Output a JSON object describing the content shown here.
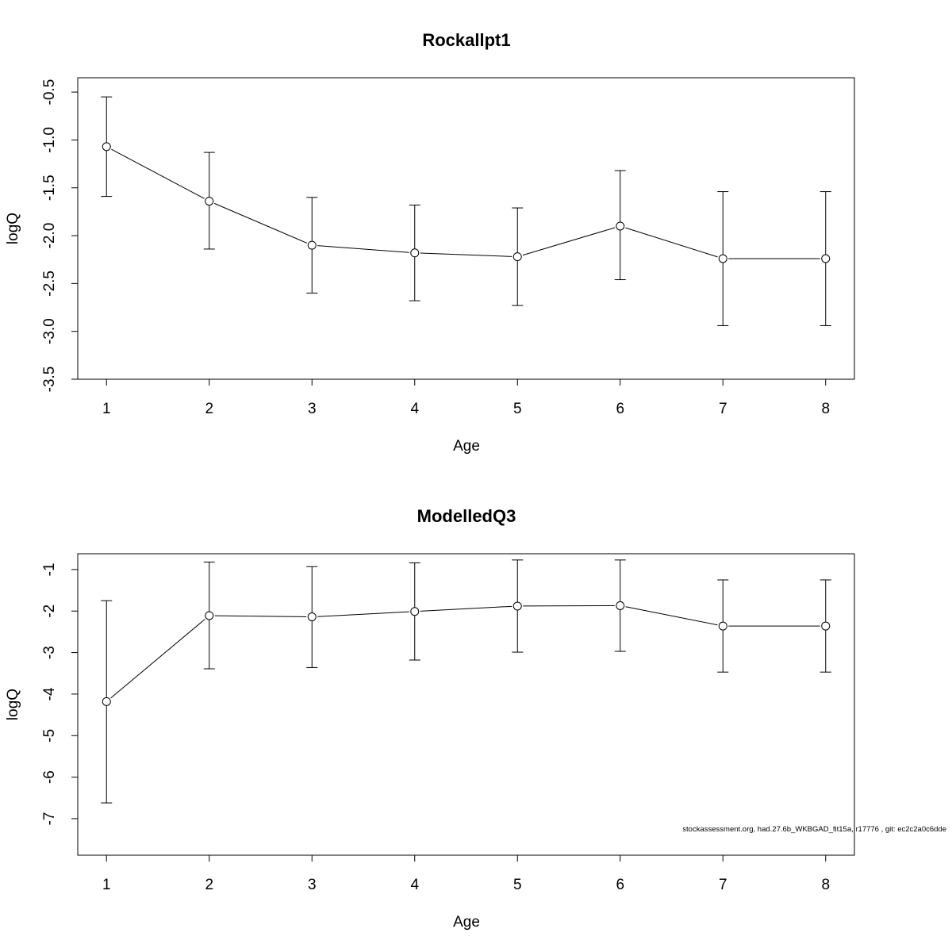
{
  "footer_text": "stockassessment.org, had.27.6b_WKBGAD_fit15a, r17776 , git: ec2c2a0c6dde",
  "chart_data": [
    {
      "type": "line",
      "title": "Rockallpt1",
      "xlabel": "Age",
      "ylabel": "logQ",
      "x": [
        1,
        2,
        3,
        4,
        5,
        6,
        7,
        8
      ],
      "xlim": [
        0.72,
        8.28
      ],
      "ylim": [
        -3.5,
        -0.35
      ],
      "yticks": [
        -3.5,
        -3.0,
        -2.5,
        -2.0,
        -1.5,
        -1.0,
        -0.5
      ],
      "ytick_labels": [
        "-3.5",
        "-3.0",
        "-2.5",
        "-2.0",
        "-1.5",
        "-1.0",
        "-0.5"
      ],
      "xtick_labels": [
        "1",
        "2",
        "3",
        "4",
        "5",
        "6",
        "7",
        "8"
      ],
      "series": [
        {
          "values": [
            -1.07,
            -1.64,
            -2.1,
            -2.18,
            -2.22,
            -1.9,
            -2.24,
            -2.24
          ],
          "lower": [
            -1.59,
            -2.14,
            -2.6,
            -2.68,
            -2.73,
            -2.46,
            -2.94,
            -2.94
          ],
          "upper": [
            -0.55,
            -1.13,
            -1.6,
            -1.68,
            -1.71,
            -1.32,
            -1.54,
            -1.54
          ]
        }
      ],
      "grid": false
    },
    {
      "type": "line",
      "title": "ModelledQ3",
      "xlabel": "Age",
      "ylabel": "logQ",
      "x": [
        1,
        2,
        3,
        4,
        5,
        6,
        7,
        8
      ],
      "xlim": [
        0.72,
        8.28
      ],
      "ylim": [
        -7.88,
        -0.62
      ],
      "yticks": [
        -7,
        -6,
        -5,
        -4,
        -3,
        -2,
        -1
      ],
      "ytick_labels": [
        "-7",
        "-6",
        "-5",
        "-4",
        "-3",
        "-2",
        "-1"
      ],
      "xtick_labels": [
        "1",
        "2",
        "3",
        "4",
        "5",
        "6",
        "7",
        "8"
      ],
      "series": [
        {
          "values": [
            -4.18,
            -2.11,
            -2.14,
            -2.01,
            -1.88,
            -1.87,
            -2.36,
            -2.36
          ],
          "lower": [
            -6.62,
            -3.39,
            -3.36,
            -3.18,
            -2.99,
            -2.97,
            -3.47,
            -3.47
          ],
          "upper": [
            -1.75,
            -0.82,
            -0.93,
            -0.84,
            -0.77,
            -0.77,
            -1.25,
            -1.25
          ]
        }
      ],
      "grid": false
    }
  ]
}
